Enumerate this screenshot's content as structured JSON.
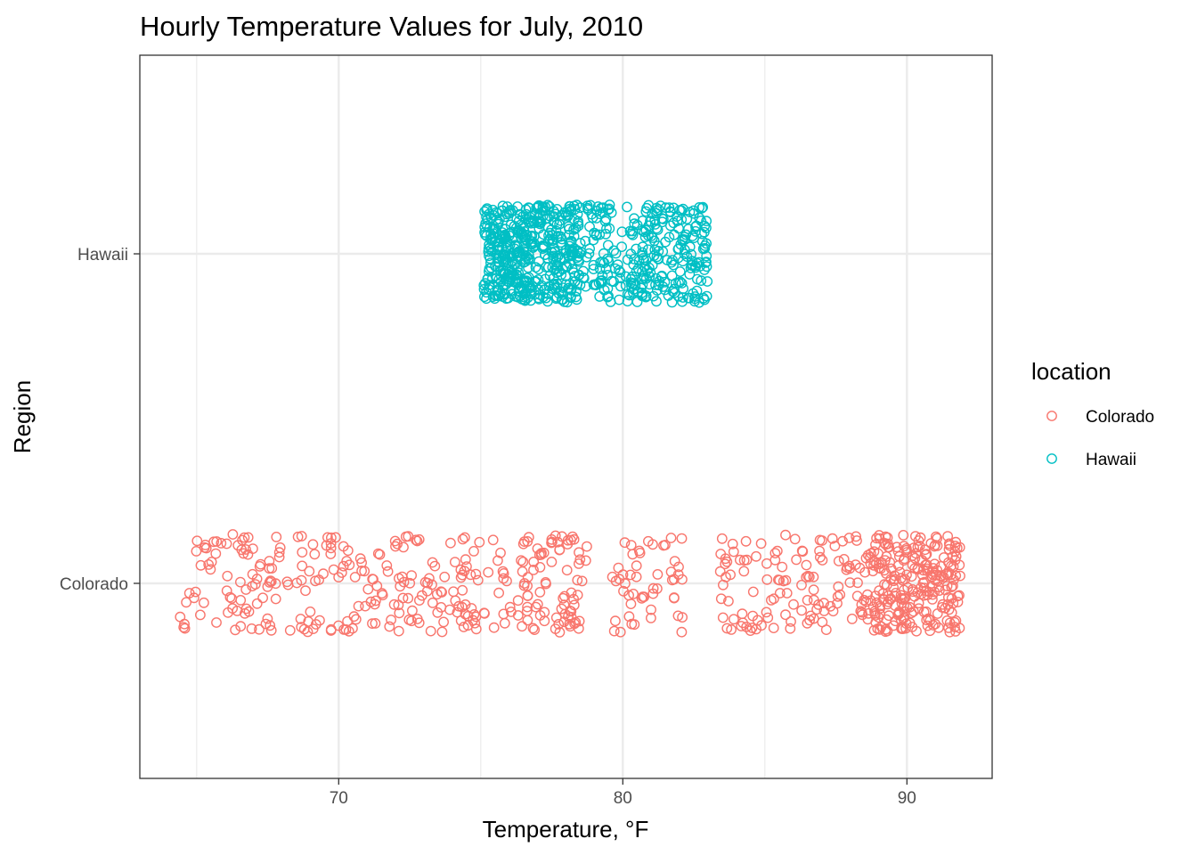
{
  "chart_data": {
    "type": "scatter",
    "title": "Hourly Temperature Values for July, 2010",
    "xlabel": "Temperature, °F",
    "ylabel": "Region",
    "xlim": [
      63.0,
      93.0
    ],
    "x_ticks": [
      70,
      80,
      90
    ],
    "categories": [
      "Colorado",
      "Hawaii"
    ],
    "grid": true,
    "jitter": "vertical, within category band",
    "legend": {
      "title": "location",
      "position": "right",
      "entries": [
        "Colorado",
        "Hawaii"
      ]
    },
    "series": [
      {
        "name": "Colorado",
        "color": "#F8766D",
        "marker": "open-circle",
        "x_range": [
          64.3,
          91.9
        ],
        "count": 744,
        "note_gaps": [
          [
            78.8,
            79.6
          ],
          [
            82.1,
            83.4
          ]
        ]
      },
      {
        "name": "Hawaii",
        "color": "#00BFC4",
        "marker": "open-circle",
        "x_range": [
          75.0,
          83.1
        ],
        "count": 744
      }
    ]
  }
}
